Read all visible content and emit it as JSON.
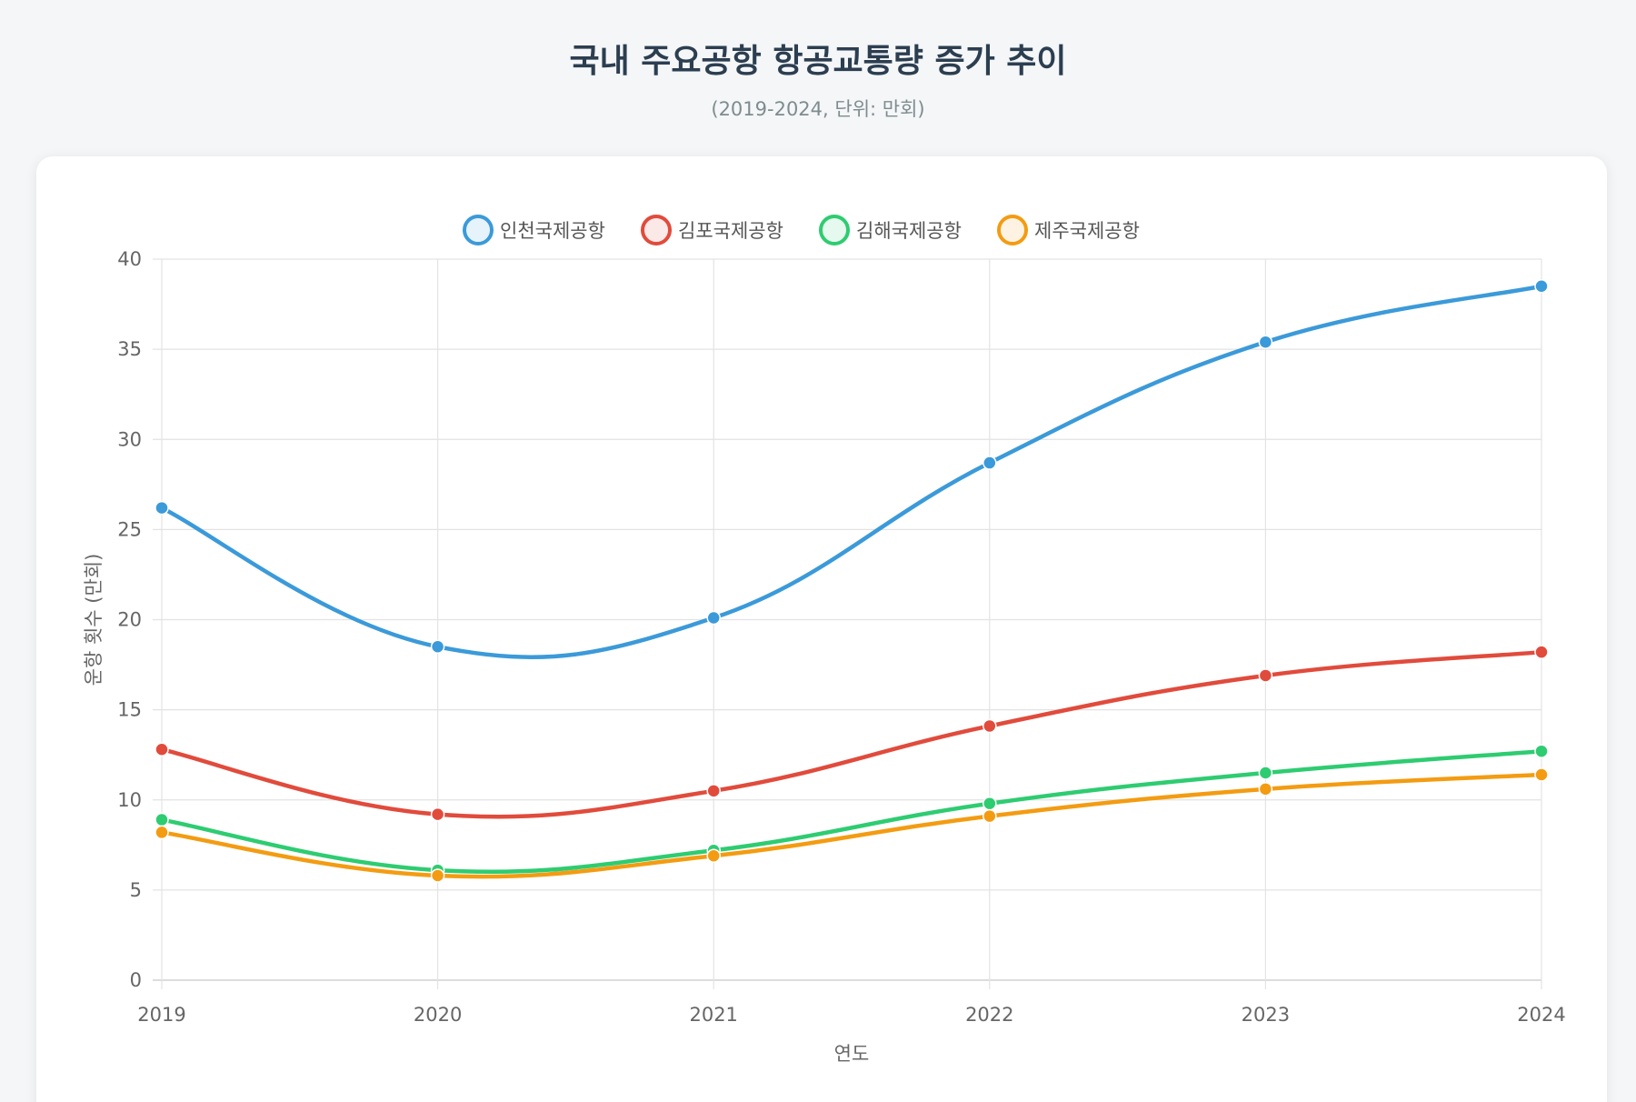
{
  "title": "국내 주요공항 항공교통량 증가 추이",
  "subtitle": "(2019-2024, 단위: 만회)",
  "chart_data": {
    "type": "line",
    "x": [
      "2019",
      "2020",
      "2021",
      "2022",
      "2023",
      "2024"
    ],
    "xlabel": "연도",
    "ylabel": "운항 횟수 (만회)",
    "ylim": [
      0,
      40
    ],
    "yticks": [
      0,
      5,
      10,
      15,
      20,
      25,
      30,
      35,
      40
    ],
    "grid": true,
    "legend_position": "top",
    "series": [
      {
        "name": "인천국제공항",
        "color": "#3b9ad9",
        "values": [
          26.2,
          18.5,
          20.1,
          28.7,
          35.4,
          38.5
        ]
      },
      {
        "name": "김포국제공항",
        "color": "#e14b3c",
        "values": [
          12.8,
          9.2,
          10.5,
          14.1,
          16.9,
          18.2
        ]
      },
      {
        "name": "김해국제공항",
        "color": "#2ecc71",
        "values": [
          8.9,
          6.1,
          7.2,
          9.8,
          11.5,
          12.7
        ]
      },
      {
        "name": "제주국제공항",
        "color": "#f39c12",
        "values": [
          8.2,
          5.8,
          6.9,
          9.1,
          10.6,
          11.4
        ]
      }
    ]
  }
}
